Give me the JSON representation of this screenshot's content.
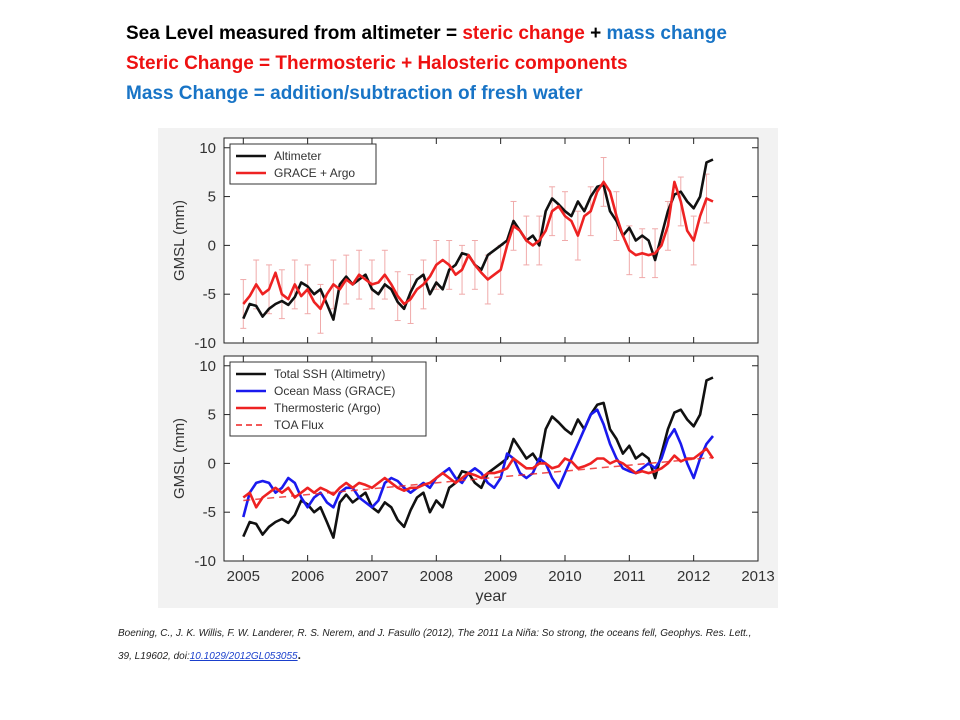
{
  "headlines": {
    "line1": {
      "part1": "Sea Level measured from altimeter = ",
      "part2": "steric  change",
      "part3": " + ",
      "part4": "mass change"
    },
    "line2": "Steric Change = Thermosteric + Halosteric components",
    "line3": "Mass Change = addition/subtraction of fresh water"
  },
  "colors": {
    "black_text": "#000000",
    "red": "#ee1111",
    "blue": "#1874c6",
    "series_black": "#111111",
    "series_red": "#ee2222",
    "series_blue": "#1a1aee",
    "errorbar": "#f0aaaa"
  },
  "citation": {
    "line1": "Boening, C., J. K. Willis, F. W. Landerer, R. S. Nerem,  and J. Fasullo (2012), The 2011 La Niña: So strong, the oceans fell, Geophys. Res. Lett.,",
    "line2_prefix": "39, L19602, doi:",
    "doi": "10.1029/2012GL053055",
    "line2_suffix": "."
  },
  "chart_data": [
    {
      "type": "line",
      "ylabel": "GMSL (mm)",
      "xlim": [
        2004.7,
        2013
      ],
      "ylim": [
        -10,
        11
      ],
      "yticks": [
        -10,
        -5,
        0,
        5,
        10
      ],
      "grid": false,
      "legend": "top-left",
      "error_bars": "GRACE + Argo",
      "series": [
        {
          "name": "Altimeter",
          "color": "black",
          "x": [
            2005.0,
            2005.1,
            2005.2,
            2005.3,
            2005.4,
            2005.5,
            2005.6,
            2005.7,
            2005.8,
            2005.9,
            2006.0,
            2006.1,
            2006.2,
            2006.3,
            2006.4,
            2006.5,
            2006.6,
            2006.7,
            2006.8,
            2006.9,
            2007.0,
            2007.1,
            2007.2,
            2007.3,
            2007.4,
            2007.5,
            2007.6,
            2007.7,
            2007.8,
            2007.9,
            2008.0,
            2008.1,
            2008.2,
            2008.3,
            2008.4,
            2008.5,
            2008.6,
            2008.7,
            2008.8,
            2008.9,
            2009.0,
            2009.1,
            2009.2,
            2009.3,
            2009.4,
            2009.5,
            2009.6,
            2009.7,
            2009.8,
            2009.9,
            2010.0,
            2010.1,
            2010.2,
            2010.3,
            2010.4,
            2010.5,
            2010.6,
            2010.7,
            2010.8,
            2010.9,
            2011.0,
            2011.1,
            2011.2,
            2011.3,
            2011.4,
            2011.5,
            2011.6,
            2011.7,
            2011.8,
            2011.9,
            2012.0,
            2012.1,
            2012.2,
            2012.3
          ],
          "y": [
            -7.5,
            -6.0,
            -6.2,
            -7.3,
            -6.5,
            -6.0,
            -5.7,
            -6.1,
            -5.3,
            -3.8,
            -4.2,
            -5.0,
            -4.5,
            -6.0,
            -7.6,
            -4.0,
            -3.2,
            -4.0,
            -3.5,
            -3.0,
            -4.5,
            -5.0,
            -4.0,
            -4.5,
            -5.8,
            -6.5,
            -4.8,
            -3.5,
            -3.0,
            -5.0,
            -3.8,
            -4.5,
            -2.5,
            -2.0,
            -0.8,
            -1.0,
            -2.0,
            -2.5,
            -1.0,
            -0.5,
            0.0,
            0.5,
            2.5,
            1.5,
            0.5,
            1.0,
            0.0,
            3.5,
            4.8,
            4.2,
            3.5,
            3.0,
            4.5,
            3.5,
            5.0,
            6.0,
            6.2,
            3.5,
            2.5,
            1.0,
            1.8,
            0.5,
            1.0,
            0.5,
            -1.5,
            1.0,
            3.5,
            5.2,
            5.5,
            4.5,
            3.8,
            5.0,
            8.5,
            8.8
          ]
        },
        {
          "name": "GRACE + Argo",
          "color": "red",
          "x": [
            2005.0,
            2005.1,
            2005.2,
            2005.3,
            2005.4,
            2005.5,
            2005.6,
            2005.7,
            2005.8,
            2005.9,
            2006.0,
            2006.1,
            2006.2,
            2006.3,
            2006.4,
            2006.5,
            2006.6,
            2006.7,
            2006.8,
            2006.9,
            2007.0,
            2007.1,
            2007.2,
            2007.3,
            2007.4,
            2007.5,
            2007.6,
            2007.7,
            2007.8,
            2007.9,
            2008.0,
            2008.1,
            2008.2,
            2008.3,
            2008.4,
            2008.5,
            2008.6,
            2008.7,
            2008.8,
            2008.9,
            2009.0,
            2009.1,
            2009.2,
            2009.3,
            2009.4,
            2009.5,
            2009.6,
            2009.7,
            2009.8,
            2009.9,
            2010.0,
            2010.1,
            2010.2,
            2010.3,
            2010.4,
            2010.5,
            2010.6,
            2010.7,
            2010.8,
            2010.9,
            2011.0,
            2011.1,
            2011.2,
            2011.3,
            2011.4,
            2011.5,
            2011.6,
            2011.7,
            2011.8,
            2011.9,
            2012.0,
            2012.1,
            2012.2,
            2012.3
          ],
          "y": [
            -6.0,
            -5.2,
            -4.0,
            -5.0,
            -4.5,
            -2.8,
            -5.0,
            -5.5,
            -4.0,
            -5.2,
            -4.5,
            -5.8,
            -6.5,
            -5.0,
            -4.0,
            -4.5,
            -3.5,
            -4.0,
            -3.0,
            -3.5,
            -4.0,
            -3.8,
            -3.0,
            -4.0,
            -5.2,
            -6.0,
            -5.5,
            -4.5,
            -4.0,
            -3.2,
            -2.0,
            -1.5,
            -2.0,
            -3.0,
            -2.5,
            -1.0,
            -2.0,
            -2.8,
            -3.5,
            -3.0,
            -2.5,
            0.0,
            2.0,
            1.5,
            0.5,
            0.0,
            0.5,
            1.5,
            3.5,
            4.0,
            3.0,
            2.5,
            1.0,
            3.0,
            3.5,
            5.5,
            6.5,
            5.5,
            3.0,
            1.0,
            -0.5,
            -1.0,
            -0.8,
            -1.0,
            -0.8,
            0.0,
            2.0,
            6.5,
            4.5,
            1.5,
            0.5,
            3.0,
            4.8,
            4.5
          ]
        }
      ]
    },
    {
      "type": "line",
      "xlabel": "year",
      "ylabel": "GMSL (mm)",
      "xlim": [
        2004.7,
        2013
      ],
      "ylim": [
        -10,
        11
      ],
      "xticks": [
        2005,
        2006,
        2007,
        2008,
        2009,
        2010,
        2011,
        2012,
        2013
      ],
      "yticks": [
        -10,
        -5,
        0,
        5,
        10
      ],
      "grid": false,
      "legend": "top-left",
      "series": [
        {
          "name": "Total SSH (Altimetry)",
          "color": "black",
          "x": [
            2005.0,
            2005.1,
            2005.2,
            2005.3,
            2005.4,
            2005.5,
            2005.6,
            2005.7,
            2005.8,
            2005.9,
            2006.0,
            2006.1,
            2006.2,
            2006.3,
            2006.4,
            2006.5,
            2006.6,
            2006.7,
            2006.8,
            2006.9,
            2007.0,
            2007.1,
            2007.2,
            2007.3,
            2007.4,
            2007.5,
            2007.6,
            2007.7,
            2007.8,
            2007.9,
            2008.0,
            2008.1,
            2008.2,
            2008.3,
            2008.4,
            2008.5,
            2008.6,
            2008.7,
            2008.8,
            2008.9,
            2009.0,
            2009.1,
            2009.2,
            2009.3,
            2009.4,
            2009.5,
            2009.6,
            2009.7,
            2009.8,
            2009.9,
            2010.0,
            2010.1,
            2010.2,
            2010.3,
            2010.4,
            2010.5,
            2010.6,
            2010.7,
            2010.8,
            2010.9,
            2011.0,
            2011.1,
            2011.2,
            2011.3,
            2011.4,
            2011.5,
            2011.6,
            2011.7,
            2011.8,
            2011.9,
            2012.0,
            2012.1,
            2012.2,
            2012.3
          ],
          "y": [
            -7.5,
            -6.0,
            -6.2,
            -7.3,
            -6.5,
            -6.0,
            -5.7,
            -6.1,
            -5.3,
            -3.8,
            -4.2,
            -5.0,
            -4.5,
            -6.0,
            -7.6,
            -4.0,
            -3.2,
            -4.0,
            -3.5,
            -3.0,
            -4.5,
            -5.0,
            -4.0,
            -4.5,
            -5.8,
            -6.5,
            -4.8,
            -3.5,
            -3.0,
            -5.0,
            -3.8,
            -4.5,
            -2.5,
            -2.0,
            -0.8,
            -1.0,
            -2.0,
            -2.5,
            -1.0,
            -0.5,
            0.0,
            0.5,
            2.5,
            1.5,
            0.5,
            1.0,
            0.0,
            3.5,
            4.8,
            4.2,
            3.5,
            3.0,
            4.5,
            3.5,
            5.0,
            6.0,
            6.2,
            3.5,
            2.5,
            1.0,
            1.8,
            0.5,
            1.0,
            0.5,
            -1.5,
            1.0,
            3.5,
            5.2,
            5.5,
            4.5,
            3.8,
            5.0,
            8.5,
            8.8
          ]
        },
        {
          "name": "Ocean Mass (GRACE)",
          "color": "blue",
          "x": [
            2005.0,
            2005.1,
            2005.2,
            2005.3,
            2005.4,
            2005.5,
            2005.6,
            2005.7,
            2005.8,
            2005.9,
            2006.0,
            2006.1,
            2006.2,
            2006.3,
            2006.4,
            2006.5,
            2006.6,
            2006.7,
            2006.8,
            2006.9,
            2007.0,
            2007.1,
            2007.2,
            2007.3,
            2007.4,
            2007.5,
            2007.6,
            2007.7,
            2007.8,
            2007.9,
            2008.0,
            2008.1,
            2008.2,
            2008.3,
            2008.4,
            2008.5,
            2008.6,
            2008.7,
            2008.8,
            2008.9,
            2009.0,
            2009.1,
            2009.2,
            2009.3,
            2009.4,
            2009.5,
            2009.6,
            2009.7,
            2009.8,
            2009.9,
            2010.0,
            2010.1,
            2010.2,
            2010.3,
            2010.4,
            2010.5,
            2010.6,
            2010.7,
            2010.8,
            2010.9,
            2011.0,
            2011.1,
            2011.2,
            2011.3,
            2011.4,
            2011.5,
            2011.6,
            2011.7,
            2011.8,
            2011.9,
            2012.0,
            2012.1,
            2012.2,
            2012.3
          ],
          "y": [
            -5.5,
            -3.0,
            -2.0,
            -1.8,
            -2.0,
            -3.0,
            -2.5,
            -1.5,
            -2.0,
            -3.5,
            -4.5,
            -3.5,
            -3.0,
            -4.0,
            -4.5,
            -3.0,
            -2.5,
            -2.5,
            -3.5,
            -4.0,
            -4.5,
            -3.8,
            -2.0,
            -1.5,
            -1.8,
            -2.5,
            -3.0,
            -2.5,
            -2.0,
            -2.5,
            -1.5,
            -1.0,
            -0.5,
            -1.5,
            -2.0,
            -1.0,
            -0.5,
            -1.0,
            -2.0,
            -2.5,
            -1.5,
            1.0,
            0.5,
            -1.0,
            -1.5,
            -1.0,
            0.5,
            0.0,
            -1.5,
            -2.5,
            -1.0,
            0.5,
            2.0,
            3.5,
            5.0,
            5.5,
            4.0,
            2.0,
            0.5,
            -0.5,
            -0.8,
            -1.0,
            -0.5,
            0.0,
            -0.5,
            0.5,
            2.5,
            3.5,
            2.0,
            0.0,
            -1.5,
            0.5,
            2.0,
            2.8
          ]
        },
        {
          "name": "Thermosteric (Argo)",
          "color": "red",
          "x": [
            2005.0,
            2005.1,
            2005.2,
            2005.3,
            2005.4,
            2005.5,
            2005.6,
            2005.7,
            2005.8,
            2005.9,
            2006.0,
            2006.1,
            2006.2,
            2006.3,
            2006.4,
            2006.5,
            2006.6,
            2006.7,
            2006.8,
            2006.9,
            2007.0,
            2007.1,
            2007.2,
            2007.3,
            2007.4,
            2007.5,
            2007.6,
            2007.7,
            2007.8,
            2007.9,
            2008.0,
            2008.1,
            2008.2,
            2008.3,
            2008.4,
            2008.5,
            2008.6,
            2008.7,
            2008.8,
            2008.9,
            2009.0,
            2009.1,
            2009.2,
            2009.3,
            2009.4,
            2009.5,
            2009.6,
            2009.7,
            2009.8,
            2009.9,
            2010.0,
            2010.1,
            2010.2,
            2010.3,
            2010.4,
            2010.5,
            2010.6,
            2010.7,
            2010.8,
            2010.9,
            2011.0,
            2011.1,
            2011.2,
            2011.3,
            2011.4,
            2011.5,
            2011.6,
            2011.7,
            2011.8,
            2011.9,
            2012.0,
            2012.1,
            2012.2,
            2012.3
          ],
          "y": [
            -3.5,
            -3.0,
            -4.5,
            -3.5,
            -3.0,
            -2.5,
            -3.0,
            -2.5,
            -3.5,
            -3.0,
            -2.5,
            -3.0,
            -2.5,
            -2.8,
            -3.2,
            -2.5,
            -2.0,
            -2.5,
            -2.0,
            -2.2,
            -2.5,
            -2.0,
            -1.5,
            -2.0,
            -2.5,
            -2.8,
            -2.5,
            -2.5,
            -2.2,
            -2.0,
            -1.5,
            -1.0,
            -1.5,
            -2.0,
            -1.5,
            -1.0,
            -1.2,
            -1.5,
            -1.0,
            -1.0,
            -0.8,
            -0.5,
            0.5,
            0.0,
            -0.5,
            -0.5,
            0.0,
            0.0,
            -0.5,
            -0.3,
            0.5,
            0.2,
            -0.5,
            -0.3,
            0.0,
            0.5,
            0.5,
            0.0,
            0.3,
            0.0,
            -0.5,
            -1.0,
            -0.8,
            -1.0,
            -0.8,
            -0.5,
            0.0,
            0.8,
            0.2,
            0.5,
            0.5,
            1.0,
            1.5,
            0.5
          ]
        },
        {
          "name": "TOA Flux",
          "color": "red",
          "style": "dashed",
          "x": [
            2005.0,
            2012.3
          ],
          "y": [
            -3.8,
            0.6
          ]
        }
      ]
    }
  ]
}
